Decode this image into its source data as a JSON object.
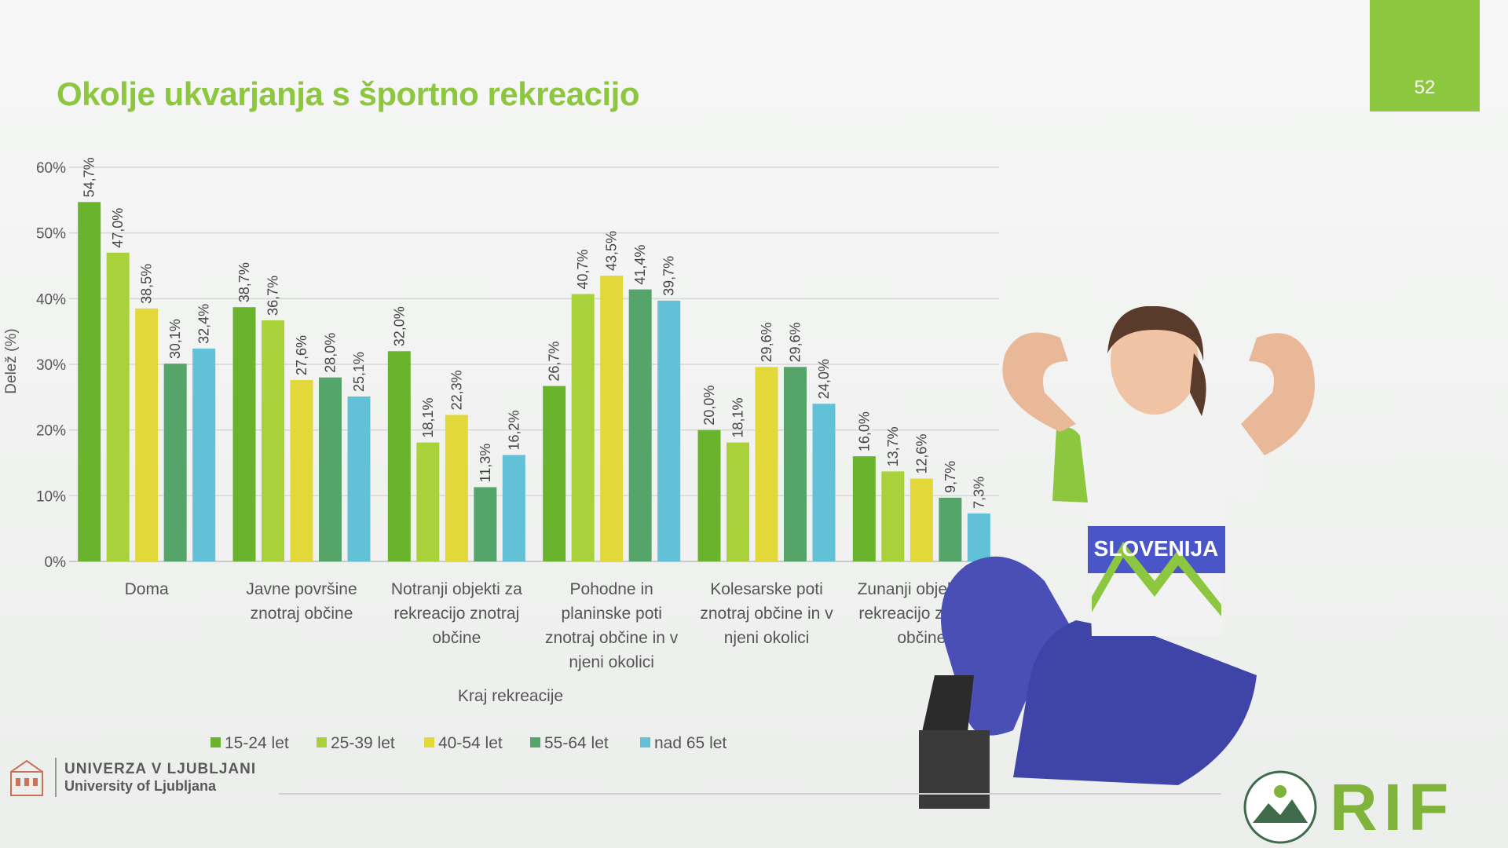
{
  "slide": {
    "title": "Okolje ukvarjanja s športno rekreacijo",
    "page_number": "52",
    "university_name": "UNIVERZA V LJUBLJANI",
    "university_name_en": "University of Ljubljana",
    "logo_text": "RIF",
    "shirt_text": "SLOVENIJA",
    "accent_color": "#8dc63f"
  },
  "chart_data": {
    "type": "bar",
    "ylabel": "Delež (%)",
    "xlabel": "Kraj rekreacije",
    "ylim": [
      0,
      60
    ],
    "yticks": [
      0,
      10,
      20,
      30,
      40,
      50,
      60
    ],
    "ytick_labels": [
      "0%",
      "10%",
      "20%",
      "30%",
      "40%",
      "50%",
      "60%"
    ],
    "grid": true,
    "legend_position": "bottom",
    "categories": [
      [
        "Doma"
      ],
      [
        "Javne površine",
        "znotraj občine"
      ],
      [
        "Notranji objekti za",
        "rekreacijo znotraj",
        "občine"
      ],
      [
        "Pohodne in",
        "planinske poti",
        "znotraj občine in v",
        "njeni okolici"
      ],
      [
        "Kolesarske poti",
        "znotraj občine in v",
        "njeni okolici"
      ],
      [
        "Zunanji objekti za",
        "rekreacijo znotraj",
        "občine"
      ]
    ],
    "series": [
      {
        "name": "15-24 let",
        "color": "#6ab42d",
        "values": [
          54.7,
          38.7,
          32.0,
          26.7,
          20.0,
          16.0
        ],
        "labels": [
          "54,7%",
          "38,7%",
          "32,0%",
          "26,7%",
          "20,0%",
          "16,0%"
        ]
      },
      {
        "name": "25-39 let",
        "color": "#a8d13a",
        "values": [
          47.0,
          36.7,
          18.1,
          40.7,
          18.1,
          13.7
        ],
        "labels": [
          "47,0%",
          "36,7%",
          "18,1%",
          "40,7%",
          "18,1%",
          "13,7%"
        ]
      },
      {
        "name": "40-54 let",
        "color": "#e2d83a",
        "values": [
          38.5,
          27.6,
          22.3,
          43.5,
          29.6,
          12.6
        ],
        "labels": [
          "38,5%",
          "27,6%",
          "22,3%",
          "43,5%",
          "29,6%",
          "12,6%"
        ]
      },
      {
        "name": "55-64 let",
        "color": "#55a46a",
        "values": [
          30.1,
          28.0,
          11.3,
          41.4,
          29.6,
          9.7
        ],
        "labels": [
          "30,1%",
          "28,0%",
          "11,3%",
          "41,4%",
          "29,6%",
          "9,7%"
        ]
      },
      {
        "name": "nad 65 let",
        "color": "#62c1d7",
        "values": [
          32.4,
          25.1,
          16.2,
          39.7,
          24.0,
          7.3
        ],
        "labels": [
          "32,4%",
          "25,1%",
          "16,2%",
          "39,7%",
          "24,0%",
          "7,3%"
        ]
      }
    ]
  }
}
